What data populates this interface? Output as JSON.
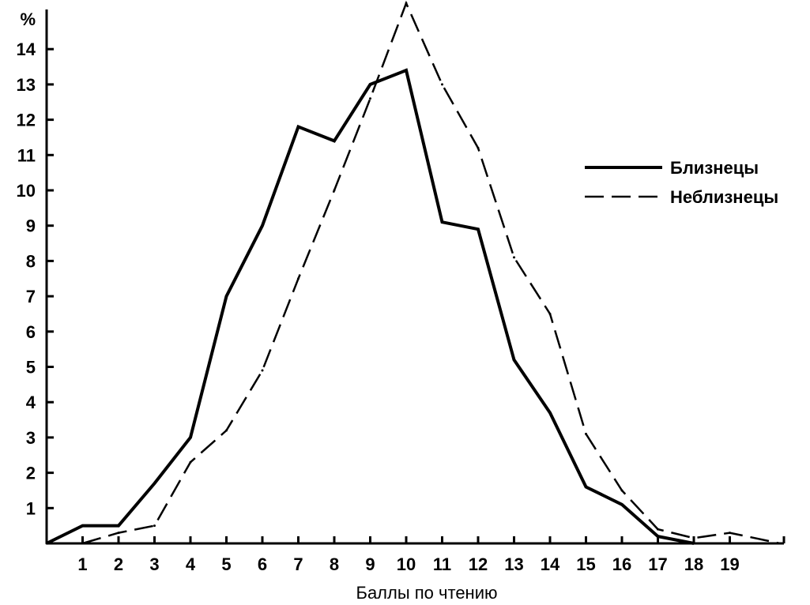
{
  "chart_data": {
    "type": "line",
    "title": "",
    "xlabel": "Баллы по чтению",
    "ylabel": "%",
    "xlim": [
      0,
      20.5
    ],
    "ylim": [
      0,
      15.3
    ],
    "x_ticks": [
      "1",
      "2",
      "3",
      "4",
      "5",
      "6",
      "7",
      "8",
      "9",
      "10",
      "11",
      "12",
      "13",
      "14",
      "15",
      "16",
      "17",
      "18",
      "19"
    ],
    "y_ticks": [
      "1",
      "2",
      "3",
      "4",
      "5",
      "6",
      "7",
      "8",
      "9",
      "10",
      "11",
      "12",
      "13",
      "14"
    ],
    "grid": false,
    "legend_position": "right",
    "series": [
      {
        "name": "Близнецы",
        "style": "solid",
        "x": [
          0,
          1,
          2,
          3,
          4,
          5,
          6,
          7,
          8,
          9,
          10,
          11,
          12,
          13,
          14,
          15,
          16,
          17,
          18
        ],
        "y": [
          0,
          0.5,
          0.5,
          1.7,
          3.0,
          7.0,
          9.0,
          11.8,
          11.4,
          13.0,
          13.4,
          9.1,
          8.9,
          5.2,
          3.7,
          1.6,
          1.1,
          0.2,
          0
        ]
      },
      {
        "name": "Неблизнецы",
        "style": "dashed",
        "x": [
          1,
          2,
          3,
          4,
          5,
          6,
          7,
          8,
          9,
          10,
          11,
          12,
          13,
          14,
          15,
          16,
          17,
          18,
          19,
          20.4
        ],
        "y": [
          0,
          0.3,
          0.5,
          2.3,
          3.2,
          4.9,
          7.5,
          10.0,
          12.6,
          15.3,
          13.0,
          11.2,
          8.1,
          6.5,
          3.1,
          1.5,
          0.4,
          0.15,
          0.3,
          0
        ]
      }
    ]
  }
}
